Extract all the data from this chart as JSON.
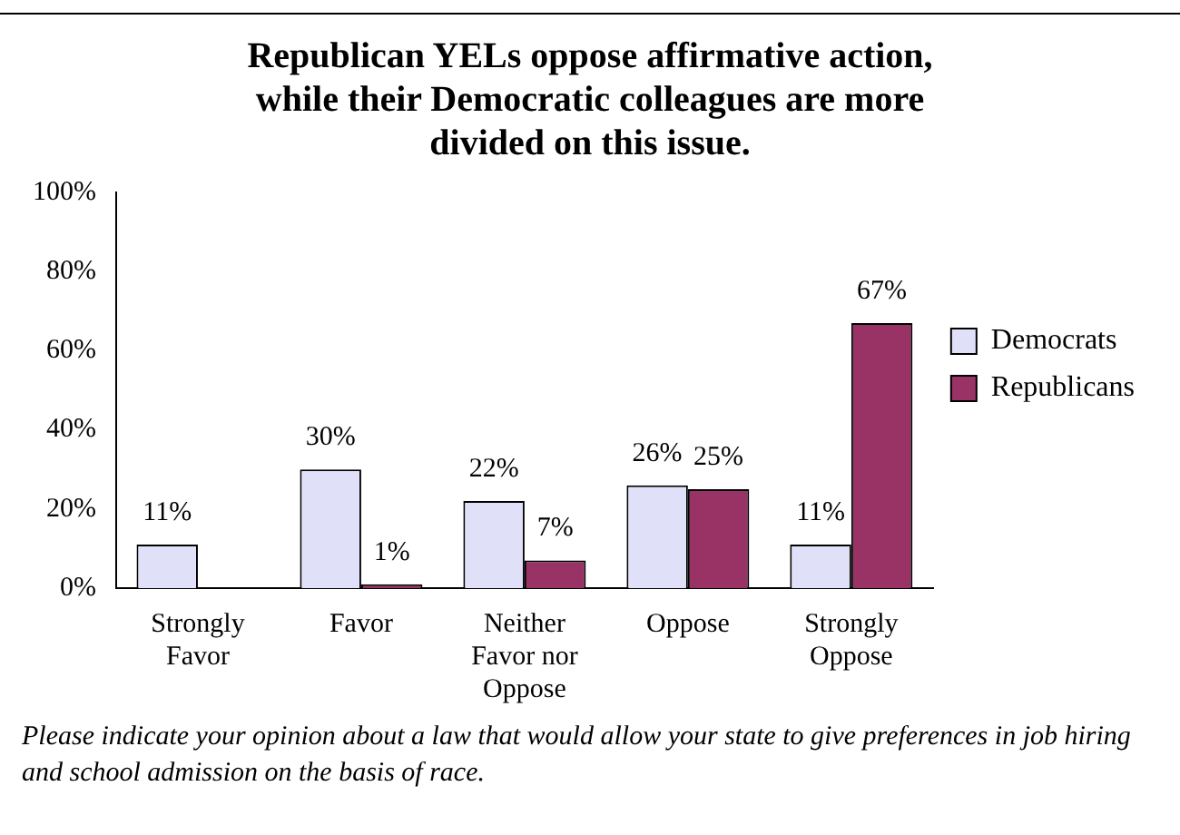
{
  "chart_data": {
    "type": "bar",
    "title": "Republican YELs oppose affirmative action,\nwhile their Democratic colleagues are more\ndivided on this issue.",
    "categories": [
      "Strongly\nFavor",
      "Favor",
      "Neither\nFavor nor\nOppose",
      "Oppose",
      "Strongly\nOppose"
    ],
    "series": [
      {
        "name": "Democrats",
        "color": "#e0e0f8",
        "values": [
          11,
          30,
          22,
          26,
          11
        ],
        "value_labels": [
          "11%",
          "30%",
          "22%",
          "26%",
          "11%"
        ]
      },
      {
        "name": "Republicans",
        "color": "#993366",
        "values": [
          0,
          1,
          7,
          25,
          67
        ],
        "value_labels": [
          null,
          "1%",
          "7%",
          "25%",
          "67%"
        ]
      }
    ],
    "ylim": [
      0,
      100
    ],
    "yticks": [
      {
        "value": 0,
        "label": "0%"
      },
      {
        "value": 20,
        "label": "20%"
      },
      {
        "value": 40,
        "label": "40%"
      },
      {
        "value": 60,
        "label": "60%"
      },
      {
        "value": 80,
        "label": "80%"
      },
      {
        "value": 100,
        "label": "100%"
      }
    ],
    "grid": false,
    "legend": "right",
    "annotations": [
      "Please indicate your opinion about a law that would allow your state to give preferences in job hiring and school admission on the basis of race."
    ]
  }
}
